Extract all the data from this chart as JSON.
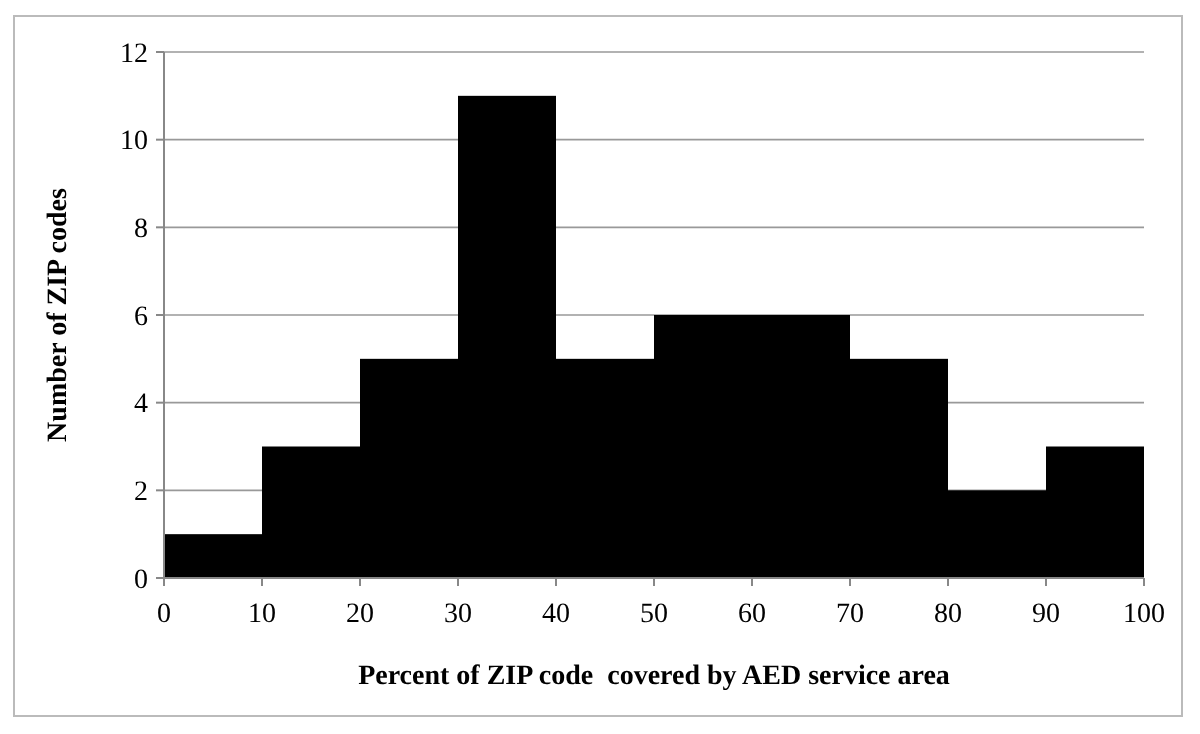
{
  "chart_data": {
    "type": "histogram",
    "xlabel": "Percent of ZIP code  covered by AED service area",
    "ylabel": "Number of ZIP codes",
    "bins": [
      0,
      10,
      20,
      30,
      40,
      50,
      60,
      70,
      80,
      90,
      100
    ],
    "values": [
      1,
      3,
      5,
      11,
      5,
      6,
      6,
      5,
      2,
      3
    ],
    "color": "#000000",
    "xlim": [
      0,
      100
    ],
    "xticks": [
      0,
      10,
      20,
      30,
      40,
      50,
      60,
      70,
      80,
      90,
      100
    ],
    "ylim": [
      0,
      12
    ],
    "yticks": [
      0,
      2,
      4,
      6,
      8,
      10,
      12
    ],
    "grid": "y"
  }
}
